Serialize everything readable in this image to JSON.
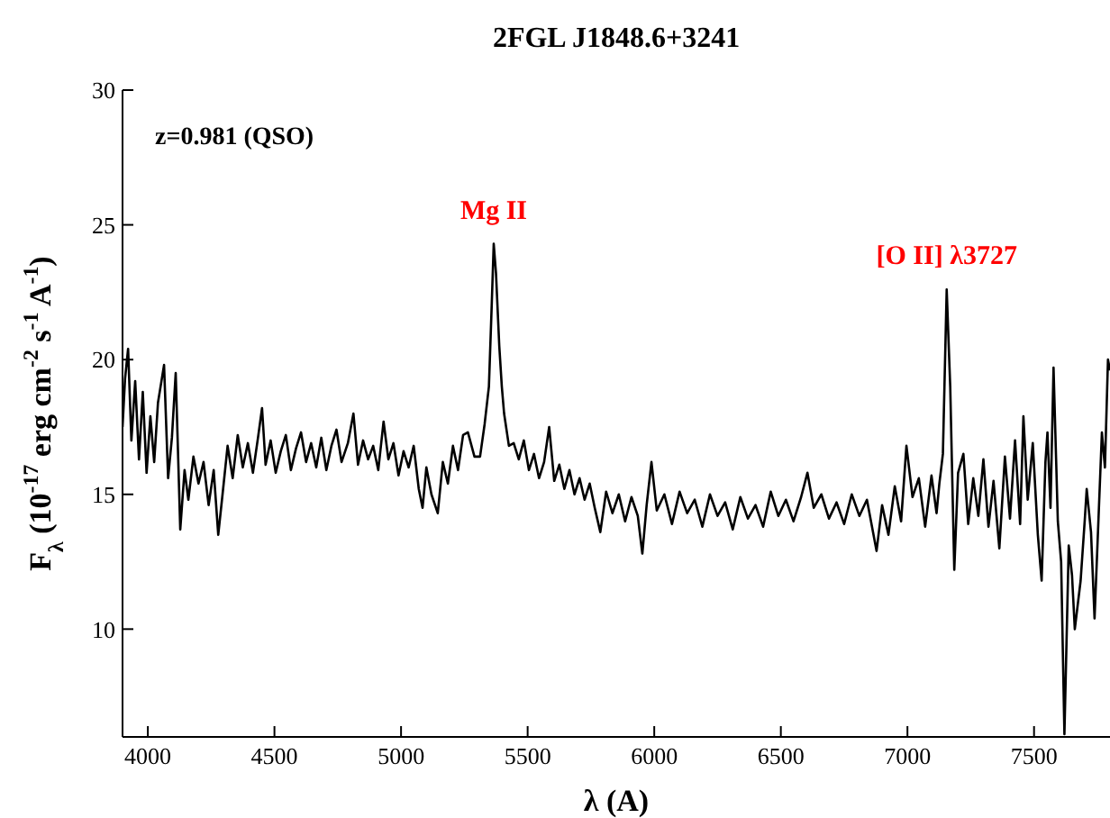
{
  "chart_data": {
    "type": "line",
    "title": "2FGL J1848.6+3241",
    "xlabel": "λ (A)",
    "ylabel": "F$_{λ}$ (10$^{-17}$ erg cm$^{-2}$ s$^{-1}$ A$^{-1}$)",
    "annotations": [
      "z=0.981 (QSO)",
      {
        "text": "Mg II",
        "x": 5366,
        "y": 24.3
      },
      {
        "text": "[O II] λ3727",
        "x": 7155,
        "y": 22.6
      }
    ],
    "x": [
      3900,
      3910,
      3922,
      3935,
      3950,
      3965,
      3980,
      3995,
      4010,
      4025,
      4040,
      4064,
      4080,
      4095,
      4110,
      4128,
      4145,
      4160,
      4180,
      4200,
      4220,
      4240,
      4260,
      4278,
      4295,
      4315,
      4335,
      4355,
      4375,
      4395,
      4415,
      4435,
      4451,
      4465,
      4485,
      4505,
      4525,
      4545,
      4565,
      4585,
      4605,
      4625,
      4645,
      4665,
      4685,
      4705,
      4725,
      4745,
      4765,
      4790,
      4812,
      4830,
      4850,
      4870,
      4890,
      4910,
      4931,
      4950,
      4970,
      4990,
      5010,
      5030,
      5050,
      5070,
      5085,
      5100,
      5120,
      5145,
      5165,
      5185,
      5205,
      5225,
      5245,
      5264,
      5290,
      5312,
      5330,
      5347,
      5358,
      5366,
      5375,
      5388,
      5398,
      5407,
      5426,
      5445,
      5465,
      5485,
      5505,
      5525,
      5545,
      5565,
      5585,
      5605,
      5625,
      5645,
      5665,
      5685,
      5705,
      5725,
      5745,
      5765,
      5787,
      5810,
      5835,
      5860,
      5885,
      5910,
      5935,
      5953,
      5970,
      5989,
      6010,
      6040,
      6070,
      6100,
      6130,
      6160,
      6190,
      6220,
      6250,
      6280,
      6310,
      6340,
      6370,
      6400,
      6430,
      6460,
      6490,
      6520,
      6550,
      6580,
      6605,
      6630,
      6660,
      6690,
      6720,
      6750,
      6780,
      6810,
      6840,
      6878,
      6900,
      6925,
      6950,
      6975,
      6996,
      7020,
      7045,
      7070,
      7095,
      7115,
      7126,
      7140,
      7155,
      7169,
      7185,
      7200,
      7221,
      7240,
      7260,
      7280,
      7300,
      7320,
      7340,
      7363,
      7385,
      7405,
      7425,
      7445,
      7458,
      7475,
      7495,
      7515,
      7530,
      7545,
      7553,
      7565,
      7577,
      7594,
      7607,
      7620,
      7637,
      7650,
      7661,
      7684,
      7700,
      7708,
      7725,
      7739,
      7755,
      7768,
      7780,
      7792,
      7800
    ],
    "series": [
      {
        "color": "#000000",
        "values": [
          17.5,
          19.3,
          20.4,
          17.0,
          19.2,
          16.3,
          18.8,
          15.8,
          17.9,
          16.2,
          18.4,
          19.8,
          15.6,
          17.1,
          19.5,
          13.7,
          15.9,
          14.8,
          16.4,
          15.4,
          16.2,
          14.6,
          15.9,
          13.5,
          15.0,
          16.8,
          15.6,
          17.2,
          16.0,
          16.9,
          15.8,
          17.1,
          18.2,
          16.1,
          17.0,
          15.8,
          16.6,
          17.2,
          15.9,
          16.7,
          17.3,
          16.2,
          16.9,
          16.0,
          17.1,
          15.9,
          16.8,
          17.4,
          16.2,
          16.9,
          18.0,
          16.1,
          17.0,
          16.3,
          16.8,
          15.9,
          17.7,
          16.3,
          16.9,
          15.7,
          16.6,
          16.0,
          16.8,
          15.2,
          14.5,
          16.0,
          15.0,
          14.3,
          16.2,
          15.4,
          16.8,
          15.9,
          17.2,
          17.3,
          16.4,
          16.4,
          17.6,
          19.0,
          22.0,
          24.3,
          23.2,
          20.5,
          19.0,
          18.0,
          16.8,
          16.9,
          16.3,
          17.0,
          15.9,
          16.5,
          15.6,
          16.2,
          17.5,
          15.5,
          16.1,
          15.2,
          15.9,
          15.0,
          15.6,
          14.8,
          15.4,
          14.5,
          13.6,
          15.1,
          14.3,
          15.0,
          14.0,
          14.9,
          14.2,
          12.8,
          14.6,
          16.2,
          14.4,
          15.0,
          13.9,
          15.1,
          14.3,
          14.8,
          13.8,
          15.0,
          14.2,
          14.7,
          13.7,
          14.9,
          14.1,
          14.6,
          13.8,
          15.1,
          14.2,
          14.8,
          14.0,
          14.9,
          15.8,
          14.5,
          15.0,
          14.1,
          14.7,
          13.9,
          15.0,
          14.2,
          14.8,
          12.9,
          14.6,
          13.5,
          15.3,
          14.0,
          16.8,
          14.9,
          15.6,
          13.8,
          15.7,
          14.3,
          15.4,
          16.5,
          22.6,
          19.0,
          12.2,
          15.8,
          16.5,
          13.9,
          15.6,
          14.2,
          16.3,
          13.8,
          15.5,
          13.0,
          16.4,
          14.1,
          17.0,
          13.9,
          17.9,
          14.8,
          16.9,
          13.5,
          11.8,
          16.2,
          17.3,
          14.5,
          19.7,
          14.0,
          12.5,
          6.1,
          13.1,
          12.0,
          10.0,
          11.8,
          14.0,
          15.2,
          13.6,
          10.4,
          14.2,
          17.3,
          16.0,
          20.0,
          19.6
        ]
      }
    ],
    "xlim": [
      3900,
      7800
    ],
    "xticks": [
      4000,
      4500,
      5000,
      5500,
      6000,
      6500,
      7000,
      7500
    ],
    "ylim": [
      6,
      30
    ],
    "yticks": [
      10,
      15,
      20,
      25,
      30
    ],
    "marker": "none",
    "line_style": "solid"
  }
}
